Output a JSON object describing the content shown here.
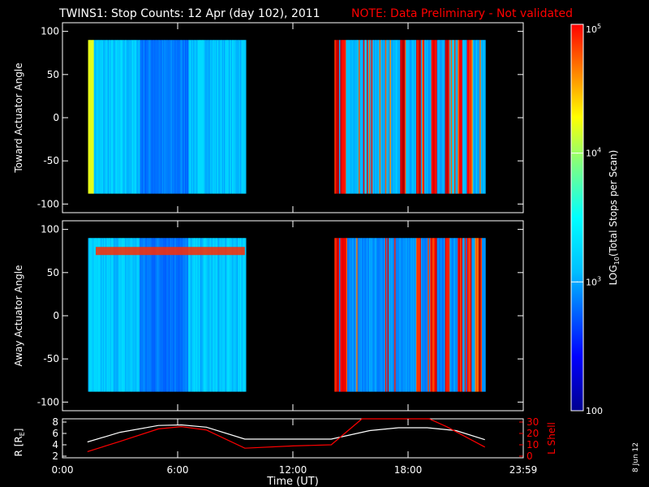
{
  "title": "TWINS1: Stop Counts: 12 Apr (day 102), 2011",
  "note": "NOTE: Data Preliminary - Not validated",
  "date_stamp": "8 Jun 12",
  "colors": {
    "background": "#000000",
    "axes": "#ffffff",
    "note": "#ff0000",
    "l_shell": "#ff0000",
    "r_line": "#ffffff"
  },
  "chart_data": [
    {
      "type": "heatmap",
      "ylabel": "Toward Actuator Angle",
      "xlim": [
        "0:00",
        "23:59"
      ],
      "ylim": [
        -110,
        110
      ],
      "yticks": [
        "100",
        "50",
        "0",
        "-50",
        "-100"
      ],
      "data_blocks": [
        {
          "x_start": "1:20",
          "x_end": "9:30",
          "y_range": [
            -88,
            90
          ],
          "background_log10": 2.95,
          "left_edge_log10": 3.8,
          "min_region": [
            "4:00",
            "6:30"
          ]
        },
        {
          "x_start": "14:10",
          "x_end": "22:00",
          "y_range": [
            -88,
            90
          ],
          "background_log10": 2.9,
          "bright_stripes": [
            "14:15",
            "14:35",
            "17:40",
            "18:30",
            "19:20",
            "20:00",
            "20:40",
            "21:10"
          ]
        }
      ]
    },
    {
      "type": "heatmap",
      "ylabel": "Away Actuator Angle",
      "xlim": [
        "0:00",
        "23:59"
      ],
      "ylim": [
        -110,
        110
      ],
      "yticks": [
        "100",
        "50",
        "0",
        "-50",
        "-100"
      ],
      "data_blocks": [
        {
          "x_start": "1:20",
          "x_end": "9:30",
          "y_range": [
            -88,
            90
          ],
          "background_log10": 2.95,
          "bright_band_y": 75,
          "min_region": [
            "4:00",
            "6:30"
          ]
        },
        {
          "x_start": "14:10",
          "x_end": "22:00",
          "y_range": [
            -88,
            90
          ],
          "background_log10": 2.8,
          "bright_stripes": [
            "14:15",
            "14:35",
            "18:30",
            "19:20",
            "20:00",
            "20:40",
            "21:10",
            "21:40"
          ]
        }
      ]
    },
    {
      "type": "line",
      "ylabel": "R [RE]",
      "y2label": "L Shell",
      "xlabel": "Time (UT)",
      "xticks": [
        "0:00",
        "6:00",
        "12:00",
        "18:00",
        "23:59"
      ],
      "ylim": [
        2,
        8
      ],
      "yticks": [
        "2",
        "4",
        "6",
        "8"
      ],
      "y2lim": [
        0,
        30
      ],
      "y2ticks": [
        "0",
        "10",
        "20",
        "30"
      ],
      "series": [
        {
          "name": "R [RE]",
          "axis": "left",
          "x": [
            1.3,
            3.0,
            5.0,
            6.2,
            7.5,
            9.5,
            12.0,
            14.0,
            16.0,
            17.5,
            19.0,
            20.5,
            22.0
          ],
          "y": [
            4.5,
            6.2,
            7.4,
            7.5,
            7.1,
            5.0,
            5.0,
            5.0,
            6.5,
            7.0,
            7.0,
            6.5,
            4.9
          ]
        },
        {
          "name": "L Shell",
          "axis": "right",
          "x": [
            1.3,
            3.0,
            5.0,
            6.2,
            7.5,
            9.5,
            12.0,
            14.0,
            15.6,
            16.0,
            19.1,
            20.0,
            21.0,
            22.0
          ],
          "y": [
            4,
            13,
            24,
            26,
            23,
            7,
            9,
            10,
            34,
            36,
            36,
            26,
            17,
            8
          ]
        }
      ]
    }
  ],
  "colorbar": {
    "label_prefix": "LOG",
    "label_sub": "10",
    "label_suffix": "(Total Stops per Scan)",
    "tick_labels": [
      "10",
      "10",
      "10",
      "100"
    ],
    "tick_exponents": [
      "5",
      "4",
      "3",
      ""
    ],
    "log10_range": [
      2,
      5
    ]
  }
}
